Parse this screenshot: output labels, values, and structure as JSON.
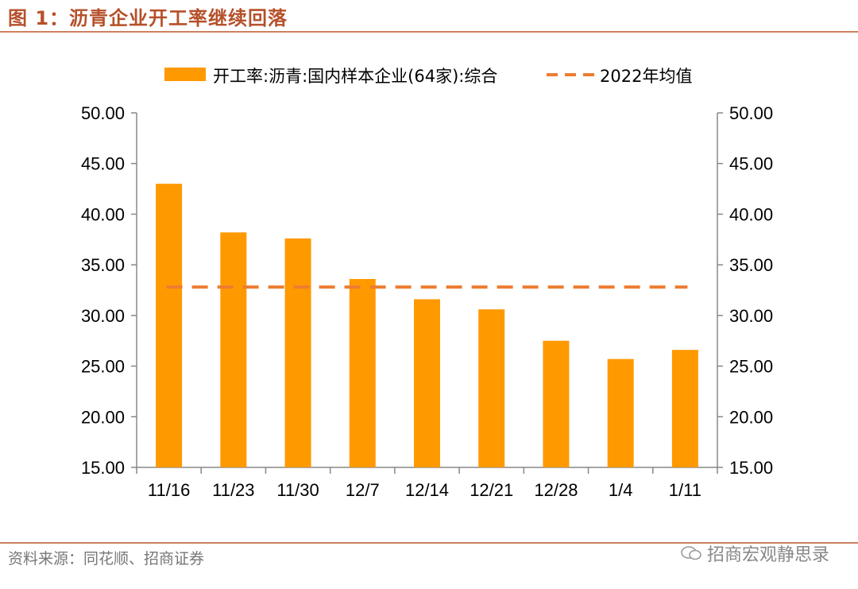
{
  "figure": {
    "title": "图 1：沥青企业开工率继续回落",
    "source": "资料来源：同花顺、招商证券",
    "watermark": "招商宏观静思录"
  },
  "colors": {
    "bar": "#FF9900",
    "avg_line": "#ED7D31",
    "title": "#B5502A",
    "rule": "#CC8060"
  },
  "chart_data": {
    "type": "bar",
    "categories": [
      "11/16",
      "11/23",
      "11/30",
      "12/7",
      "12/14",
      "12/21",
      "12/28",
      "1/4",
      "1/11"
    ],
    "series": [
      {
        "name": "开工率:沥青:国内样本企业(64家):综合",
        "kind": "bar",
        "values": [
          43.0,
          38.2,
          37.6,
          33.6,
          31.6,
          30.6,
          27.5,
          25.7,
          26.6
        ]
      },
      {
        "name": "2022年均值",
        "kind": "dashed-line",
        "values": [
          32.8,
          32.8,
          32.8,
          32.8,
          32.8,
          32.8,
          32.8,
          32.8,
          32.8
        ]
      }
    ],
    "ylim": [
      15,
      50
    ],
    "yticks": [
      "15.00",
      "20.00",
      "25.00",
      "30.00",
      "35.00",
      "40.00",
      "45.00",
      "50.00"
    ],
    "secondary_y": true,
    "legend_position": "top-center",
    "grid": false
  }
}
